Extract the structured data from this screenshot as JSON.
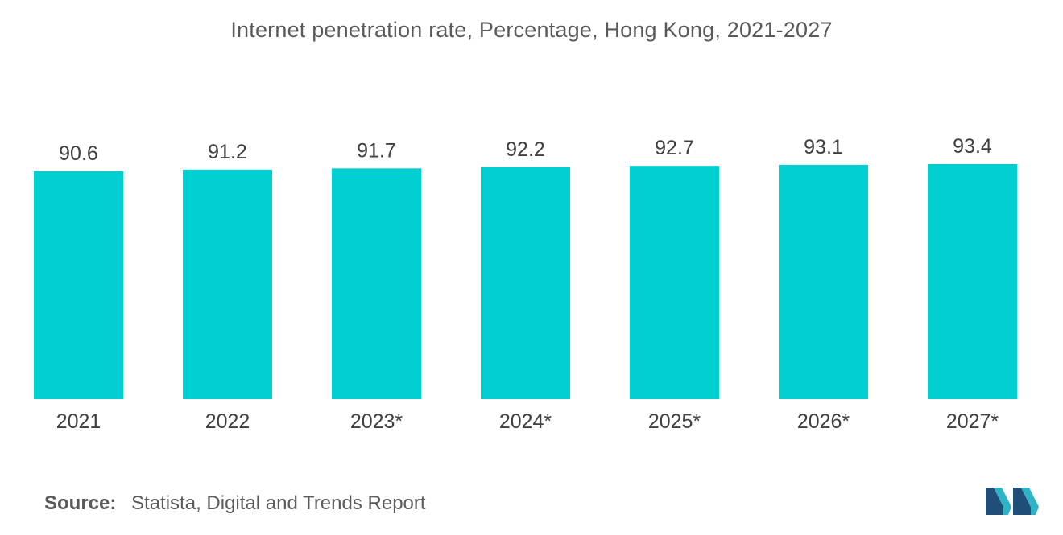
{
  "chart_data": {
    "type": "bar",
    "title": "Internet penetration rate, Percentage, Hong Kong, 2021-2027",
    "categories": [
      "2021",
      "2022",
      "2023*",
      "2024*",
      "2025*",
      "2026*",
      "2027*"
    ],
    "values": [
      90.6,
      91.2,
      91.7,
      92.2,
      92.7,
      93.1,
      93.4
    ],
    "value_labels": [
      "90.6",
      "91.2",
      "91.7",
      "92.2",
      "92.7",
      "93.1",
      "93.4"
    ],
    "xlabel": "",
    "ylabel": "",
    "ylim": [
      0,
      93.4
    ],
    "grid": false,
    "bar_color": "#00ced1"
  },
  "source": {
    "label": "Source:",
    "text": "Statista, Digital and Trends Report"
  },
  "logo": {
    "icon": "mordor-intelligence-logo-icon",
    "colors": [
      "#1f4e79",
      "#2fb3c7"
    ]
  }
}
